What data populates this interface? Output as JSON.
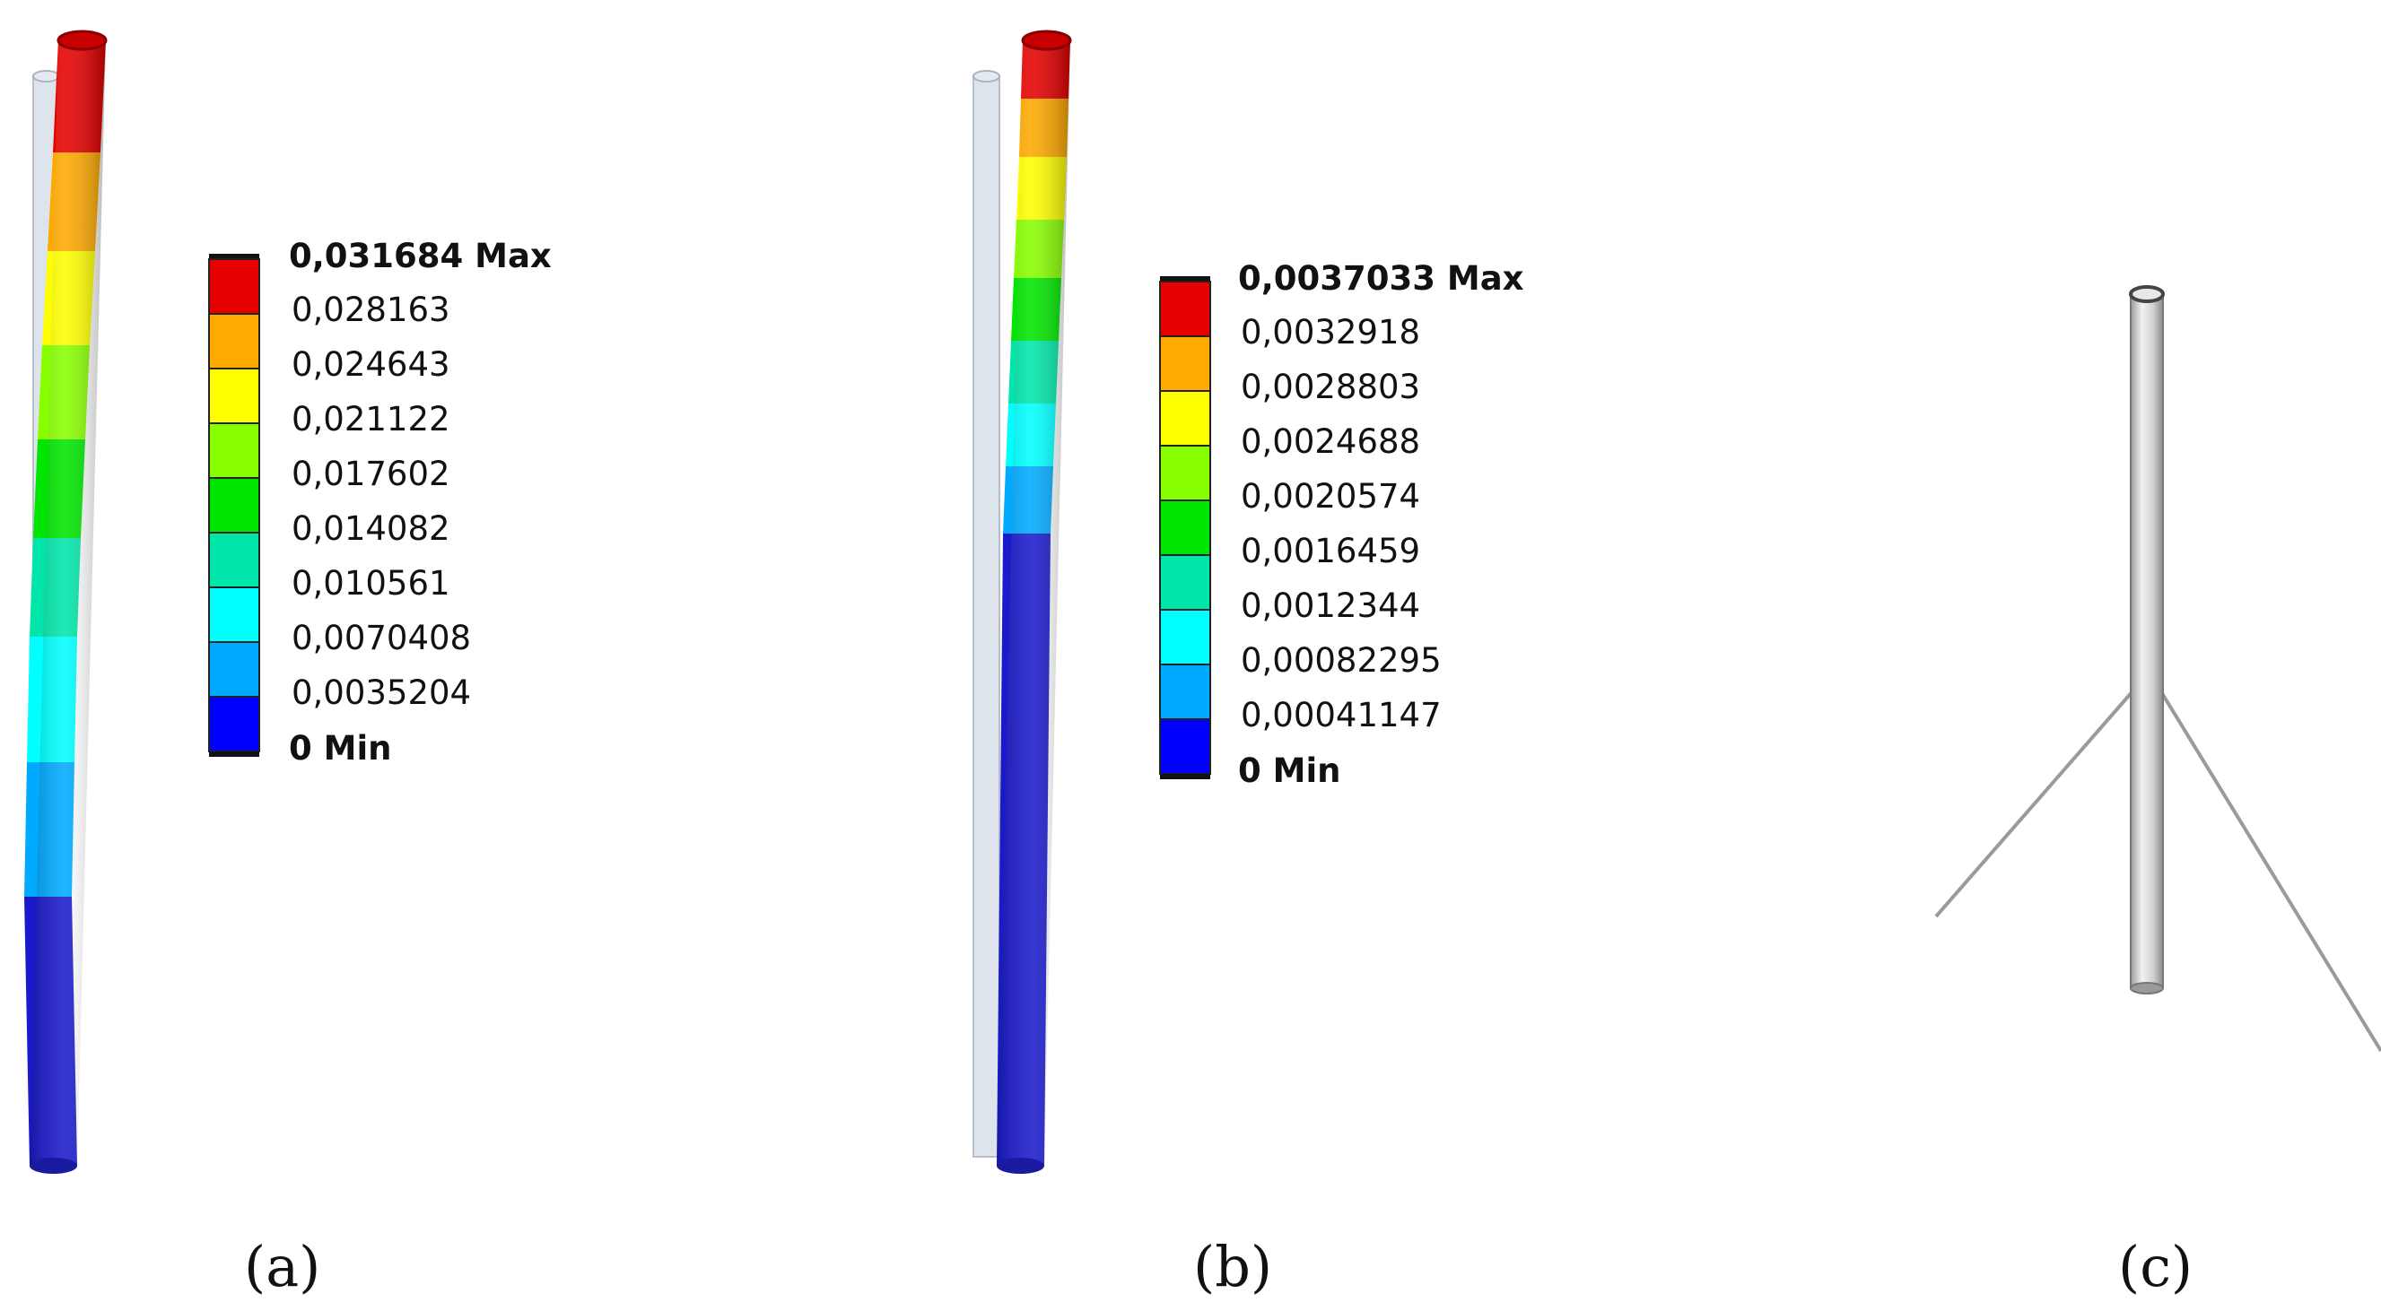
{
  "panels": [
    {
      "caption": "(a)",
      "legend": {
        "max_label": "0,031684 Max",
        "min_label": "0 Min",
        "labels": [
          "0,028163",
          "0,024643",
          "0,021122",
          "0,017602",
          "0,014082",
          "0,010561",
          "0,0070408",
          "0,0035204"
        ]
      }
    },
    {
      "caption": "(b)",
      "legend": {
        "max_label": "0,0037033 Max",
        "min_label": "0 Min",
        "labels": [
          "0,0032918",
          "0,0028803",
          "0,0024688",
          "0,0020574",
          "0,0016459",
          "0,0012344",
          "0,00082295",
          "0,00041147"
        ]
      }
    },
    {
      "caption": "(c)"
    }
  ],
  "colors": {
    "scale": [
      "#e60000",
      "#ffaa00",
      "#ffff00",
      "#88ff00",
      "#00e600",
      "#00e6aa",
      "#00ffff",
      "#00aaff",
      "#0000ff"
    ],
    "rod_ghost": "#c8d2dc",
    "model_gray": "#aaaaaa",
    "background": "#ffffff"
  }
}
